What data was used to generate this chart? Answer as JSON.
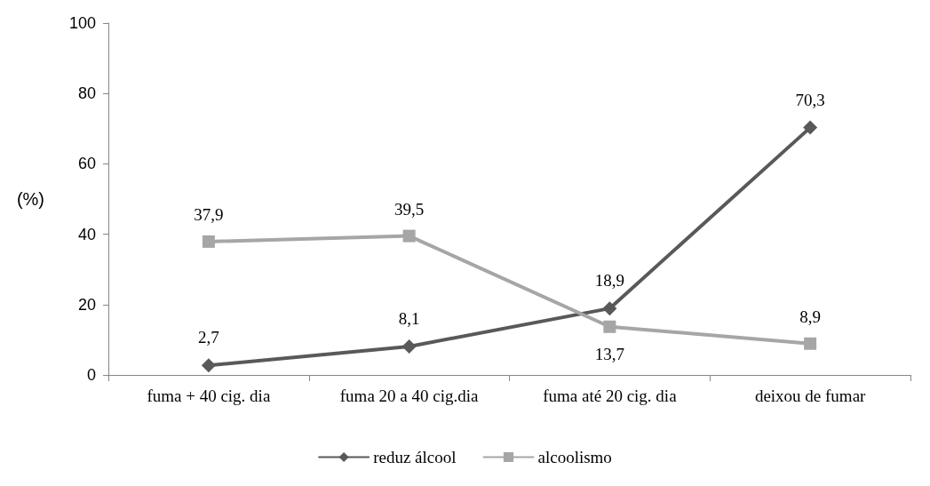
{
  "chart_data": {
    "type": "line",
    "ylabel": "(%)",
    "categories": [
      "fuma + 40 cig. dia",
      "fuma 20 a 40 cig.dia",
      "fuma até 20 cig. dia",
      "deixou de fumar"
    ],
    "series": [
      {
        "name": "reduz álcool",
        "color": "#595959",
        "marker": "diamond",
        "values": [
          2.7,
          8.1,
          18.9,
          70.3
        ],
        "value_labels": [
          "2,7",
          "8,1",
          "18,9",
          "70,3"
        ]
      },
      {
        "name": "alcoolismo",
        "color": "#a6a6a6",
        "marker": "square",
        "values": [
          37.9,
          39.5,
          13.7,
          8.9
        ],
        "value_labels": [
          "37,9",
          "39,5",
          "13,7",
          "8,9"
        ]
      }
    ],
    "ylim": [
      0,
      100
    ],
    "yticks": [
      0,
      20,
      40,
      60,
      80,
      100
    ],
    "grid": false,
    "legend": "bottom"
  }
}
